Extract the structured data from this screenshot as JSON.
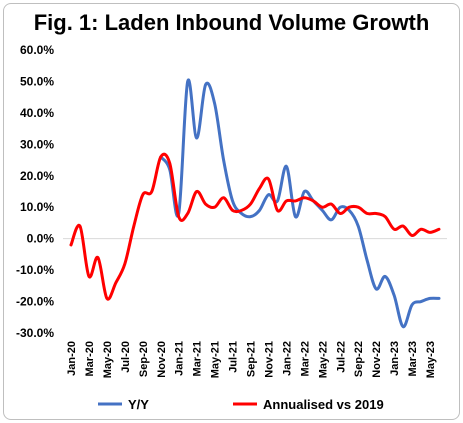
{
  "chart_data": {
    "type": "line",
    "title": "Fig. 1: Laden Inbound Volume Growth",
    "xlabel": "",
    "ylabel": "",
    "ylim": [
      -0.3,
      0.6
    ],
    "yticks": [
      "60.0%",
      "50.0%",
      "40.0%",
      "30.0%",
      "20.0%",
      "10.0%",
      "0.0%",
      "-10.0%",
      "-20.0%",
      "-30.0%"
    ],
    "xtick_labels": [
      "Jan-20",
      "Mar-20",
      "May-20",
      "Jul-20",
      "Sep-20",
      "Nov-20",
      "Jan-21",
      "Mar-21",
      "May-21",
      "Jul-21",
      "Sep-21",
      "Nov-21",
      "Jan-22",
      "Mar-22",
      "May-22",
      "Jul-22",
      "Sep-22",
      "Nov-22",
      "Jan-23",
      "Mar-23",
      "May-23"
    ],
    "x": [
      "Jan-20",
      "Feb-20",
      "Mar-20",
      "Apr-20",
      "May-20",
      "Jun-20",
      "Jul-20",
      "Aug-20",
      "Sep-20",
      "Oct-20",
      "Nov-20",
      "Dec-20",
      "Jan-21",
      "Feb-21",
      "Mar-21",
      "Apr-21",
      "May-21",
      "Jun-21",
      "Jul-21",
      "Aug-21",
      "Sep-21",
      "Oct-21",
      "Nov-21",
      "Dec-21",
      "Jan-22",
      "Feb-22",
      "Mar-22",
      "Apr-22",
      "May-22",
      "Jun-22",
      "Jul-22",
      "Aug-22",
      "Sep-22",
      "Oct-22",
      "Nov-22",
      "Dec-22",
      "Jan-23",
      "Feb-23",
      "Mar-23",
      "Apr-23",
      "May-23",
      "Jun-23"
    ],
    "legend_position": "bottom",
    "series": [
      {
        "name": "Y/Y",
        "color": "#4472c4",
        "values": [
          null,
          null,
          null,
          null,
          null,
          null,
          null,
          null,
          null,
          null,
          0.26,
          0.22,
          0.08,
          0.5,
          0.32,
          0.49,
          0.43,
          0.25,
          0.12,
          0.08,
          0.07,
          0.09,
          0.14,
          0.12,
          0.23,
          0.07,
          0.15,
          0.12,
          0.09,
          0.06,
          0.1,
          0.09,
          0.04,
          -0.07,
          -0.16,
          -0.12,
          -0.18,
          -0.28,
          -0.21,
          -0.2,
          -0.19,
          -0.19
        ]
      },
      {
        "name": "Annualised vs 2019",
        "color": "#ff0000",
        "values": [
          -0.02,
          0.04,
          -0.12,
          -0.06,
          -0.19,
          -0.14,
          -0.08,
          0.04,
          0.14,
          0.15,
          0.26,
          0.24,
          0.07,
          0.08,
          0.15,
          0.11,
          0.1,
          0.13,
          0.09,
          0.09,
          0.11,
          0.16,
          0.19,
          0.09,
          0.12,
          0.12,
          0.13,
          0.12,
          0.1,
          0.11,
          0.08,
          0.1,
          0.1,
          0.08,
          0.08,
          0.07,
          0.03,
          0.04,
          0.01,
          0.03,
          0.02,
          0.03
        ]
      }
    ]
  }
}
